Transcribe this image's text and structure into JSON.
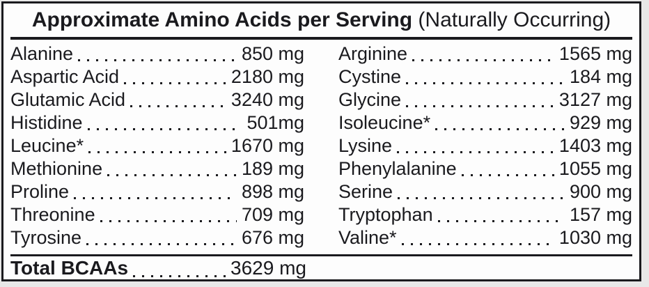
{
  "title": {
    "bold": "Approximate Amino Acids per Serving",
    "normal": " (Naturally Occurring)"
  },
  "columns": {
    "left": [
      {
        "name": "Alanine",
        "value": "850 mg"
      },
      {
        "name": "Aspartic Acid",
        "value": "2180 mg"
      },
      {
        "name": "Glutamic Acid",
        "value": "3240 mg"
      },
      {
        "name": "Histidine",
        "value": "501mg"
      },
      {
        "name": "Leucine*",
        "value": "1670 mg"
      },
      {
        "name": "Methionine",
        "value": "189 mg"
      },
      {
        "name": "Proline",
        "value": "898 mg"
      },
      {
        "name": "Threonine",
        "value": "709 mg"
      },
      {
        "name": "Tyrosine",
        "value": "676 mg"
      }
    ],
    "right": [
      {
        "name": "Arginine",
        "value": "1565 mg"
      },
      {
        "name": "Cystine",
        "value": "184 mg"
      },
      {
        "name": "Glycine",
        "value": "3127 mg"
      },
      {
        "name": "Isoleucine*",
        "value": "929 mg"
      },
      {
        "name": "Lysine",
        "value": "1403 mg"
      },
      {
        "name": "Phenylalanine",
        "value": "1055 mg"
      },
      {
        "name": "Serine",
        "value": "900 mg"
      },
      {
        "name": "Tryptophan",
        "value": "157 mg"
      },
      {
        "name": "Valine*",
        "value": "1030 mg"
      }
    ]
  },
  "total": {
    "label": "Total BCAAs",
    "value": "3629 mg"
  },
  "colors": {
    "text": "#1a1a1e",
    "border": "#1a1a1e",
    "label_background": "#fdfdfd",
    "page_background": "#e8e8e8"
  }
}
